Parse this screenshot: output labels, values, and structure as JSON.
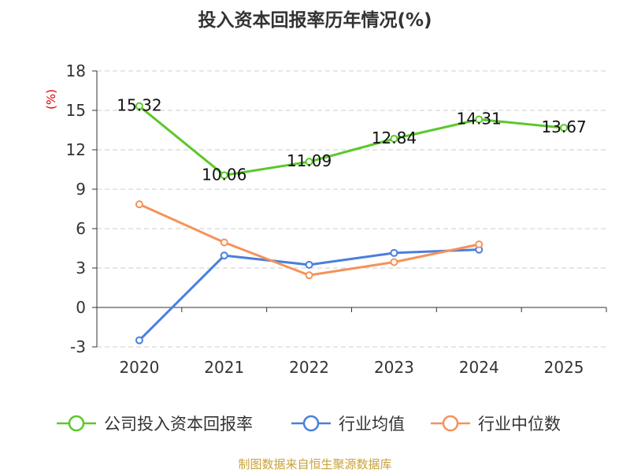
{
  "chart_data": {
    "type": "line",
    "title": "投入资本回报率历年情况(%)",
    "unit_label": "(%)",
    "categories": [
      "2020",
      "2021",
      "2022",
      "2023",
      "2024",
      "2025"
    ],
    "y_ticks": [
      "18",
      "15",
      "12",
      "9",
      "6",
      "3",
      "0",
      "-3"
    ],
    "ylim": [
      -3,
      18
    ],
    "grid": "horizontal-dashed",
    "legend_position": "bottom",
    "series": [
      {
        "name": "公司投入资本回报率",
        "color": "#5cc82a",
        "values": [
          15.32,
          10.06,
          11.09,
          12.84,
          14.31,
          13.67
        ],
        "labels": [
          "15.32",
          "10.06",
          "11.09",
          "12.84",
          "14.31",
          "13.67"
        ]
      },
      {
        "name": "行业均值",
        "color": "#4a7fdc",
        "values": [
          -2.5,
          3.95,
          3.25,
          4.15,
          4.4,
          null
        ]
      },
      {
        "name": "行业中位数",
        "color": "#f5925a",
        "values": [
          7.85,
          4.95,
          2.45,
          3.45,
          4.8,
          null
        ]
      }
    ],
    "source": "制图数据来自恒生聚源数据库"
  }
}
